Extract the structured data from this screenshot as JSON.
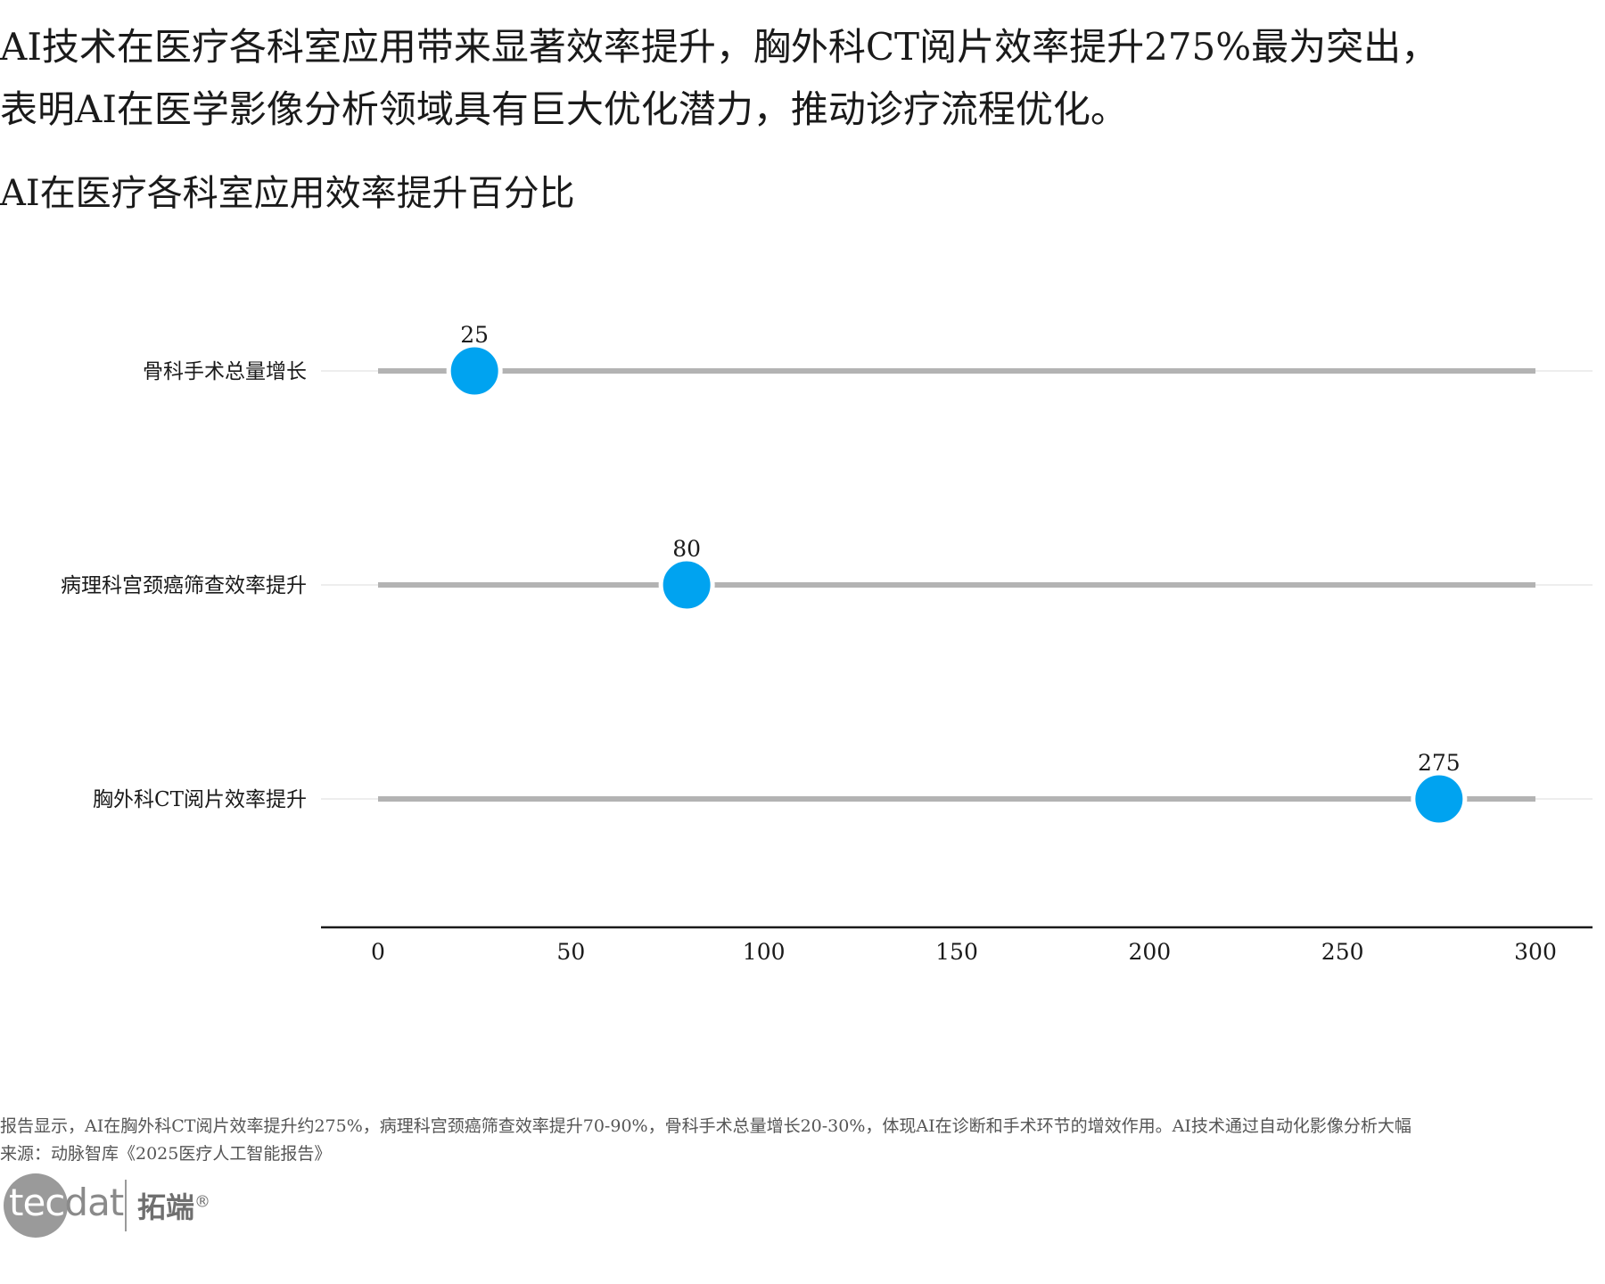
{
  "headline": {
    "line1": "AI技术在医疗各科室应用带来显著效率提升，胸外科CT阅片效率提升275%最为突出，",
    "line2": "表明AI在医学影像分析领域具有巨大优化潜力，推动诊疗流程优化。"
  },
  "chart_data": {
    "type": "lollipop",
    "title": "AI在医疗各科室应用效率提升百分比",
    "xlabel": "",
    "ylabel": "",
    "categories": [
      "骨科手术总量增长",
      "病理科宫颈癌筛查效率提升",
      "胸外科CT阅片效率提升"
    ],
    "values": [
      25,
      80,
      275
    ],
    "data_labels": [
      "25",
      "80",
      "275"
    ],
    "xlim": [
      0,
      300
    ],
    "xticks": [
      0,
      50,
      100,
      150,
      200,
      250,
      300
    ],
    "xtick_labels": [
      "0",
      "50",
      "100",
      "150",
      "200",
      "250",
      "300"
    ],
    "grid": false,
    "legend": "none",
    "colors": {
      "dot": "#00a3f0",
      "stem": "#b3b3b3",
      "track": "#eeeeee",
      "axis": "#1a1a1a"
    }
  },
  "footer": {
    "note": "报告显示，AI在胸外科CT阅片效率提升约275%，病理科宫颈癌筛查效率提升70-90%，骨科手术总量增长20-30%，体现AI在诊断和手术环节的增效作用。AI技术通过自动化影像分析大幅",
    "source": "来源：动脉智库《2025医疗人工智能报告》"
  },
  "logo": {
    "text_light": "tec",
    "text_dark": "dat",
    "cn": "拓端",
    "mark": "®"
  }
}
